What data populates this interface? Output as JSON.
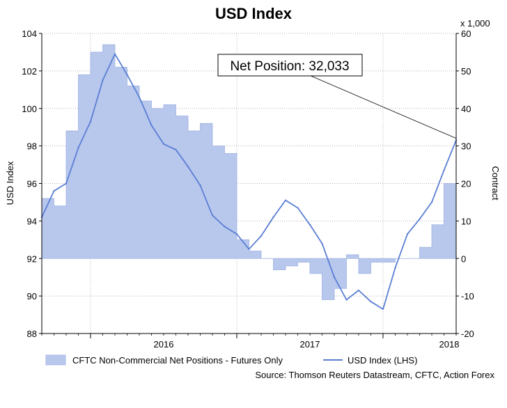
{
  "chart_data": {
    "type": "line",
    "title": "USD Index",
    "left_axis": {
      "label": "USD Index",
      "min": 88,
      "max": 104,
      "ticks": [
        88,
        90,
        92,
        94,
        96,
        98,
        100,
        102,
        104
      ]
    },
    "right_axis": {
      "label": "Contract",
      "unit_note": "x 1,000",
      "min": -20,
      "max": 60,
      "ticks": [
        -20,
        -10,
        0,
        10,
        20,
        30,
        40,
        50,
        60
      ]
    },
    "x_axis": {
      "start": "2015-09",
      "end": "2018-07",
      "year_labels": [
        "2016",
        "2017",
        "2018"
      ]
    },
    "grid": true,
    "legend": {
      "placement": "bottom",
      "area_label": "CFTC Non-Commercial Net Positions - Futures Only",
      "line_label": "USD Index (LHS)"
    },
    "source": "Source: Thomson Reuters Datastream, CFTC, Action Forex",
    "annotation": {
      "text": "Net Position: 32,033",
      "value": 32.033
    },
    "colors": {
      "area": "#b8c7ec",
      "area_edge": "#9fb2e3",
      "line": "#5b7fd4",
      "grid": "#999999"
    },
    "series": [
      {
        "name": "CFTC Non-Commercial Net Positions - Futures Only",
        "kind": "area",
        "axis": "right",
        "x": [
          "2015-09",
          "2015-10",
          "2015-11",
          "2015-12",
          "2016-01",
          "2016-02",
          "2016-03",
          "2016-04",
          "2016-05",
          "2016-06",
          "2016-07",
          "2016-08",
          "2016-09",
          "2016-10",
          "2016-11",
          "2016-12",
          "2017-01",
          "2017-02",
          "2017-03",
          "2017-04",
          "2017-05",
          "2017-06",
          "2017-07",
          "2017-08",
          "2017-09",
          "2017-10",
          "2017-11",
          "2017-12",
          "2018-01",
          "2018-02",
          "2018-03",
          "2018-04",
          "2018-05",
          "2018-06",
          "2018-07"
        ],
        "values": [
          16,
          14,
          34,
          49,
          55,
          57,
          51,
          46,
          42,
          40,
          41,
          38,
          34,
          36,
          30,
          28,
          5,
          2,
          0,
          -3,
          -2,
          -1,
          -4,
          -11,
          -8,
          1,
          -4,
          -1,
          -1,
          0,
          0,
          3,
          9,
          20,
          32
        ]
      },
      {
        "name": "USD Index (LHS)",
        "kind": "line",
        "axis": "left",
        "x": [
          "2015-09",
          "2015-10",
          "2015-11",
          "2015-12",
          "2016-01",
          "2016-02",
          "2016-03",
          "2016-04",
          "2016-05",
          "2016-06",
          "2016-07",
          "2016-08",
          "2016-09",
          "2016-10",
          "2016-11",
          "2016-12",
          "2017-01",
          "2017-02",
          "2017-03",
          "2017-04",
          "2017-05",
          "2017-06",
          "2017-07",
          "2017-08",
          "2017-09",
          "2017-10",
          "2017-11",
          "2017-12",
          "2018-01",
          "2018-02",
          "2018-03",
          "2018-04",
          "2018-05",
          "2018-06",
          "2018-07"
        ],
        "values": [
          94.2,
          95.6,
          96.0,
          97.9,
          99.3,
          101.5,
          102.9,
          101.8,
          100.6,
          99.1,
          98.1,
          97.8,
          96.9,
          95.9,
          94.3,
          93.7,
          93.3,
          92.5,
          93.2,
          94.2,
          95.1,
          94.7,
          93.8,
          92.8,
          91.0,
          89.8,
          90.3,
          89.7,
          89.3,
          91.5,
          93.3,
          94.1,
          95.0,
          96.7,
          98.3
        ]
      }
    ]
  }
}
